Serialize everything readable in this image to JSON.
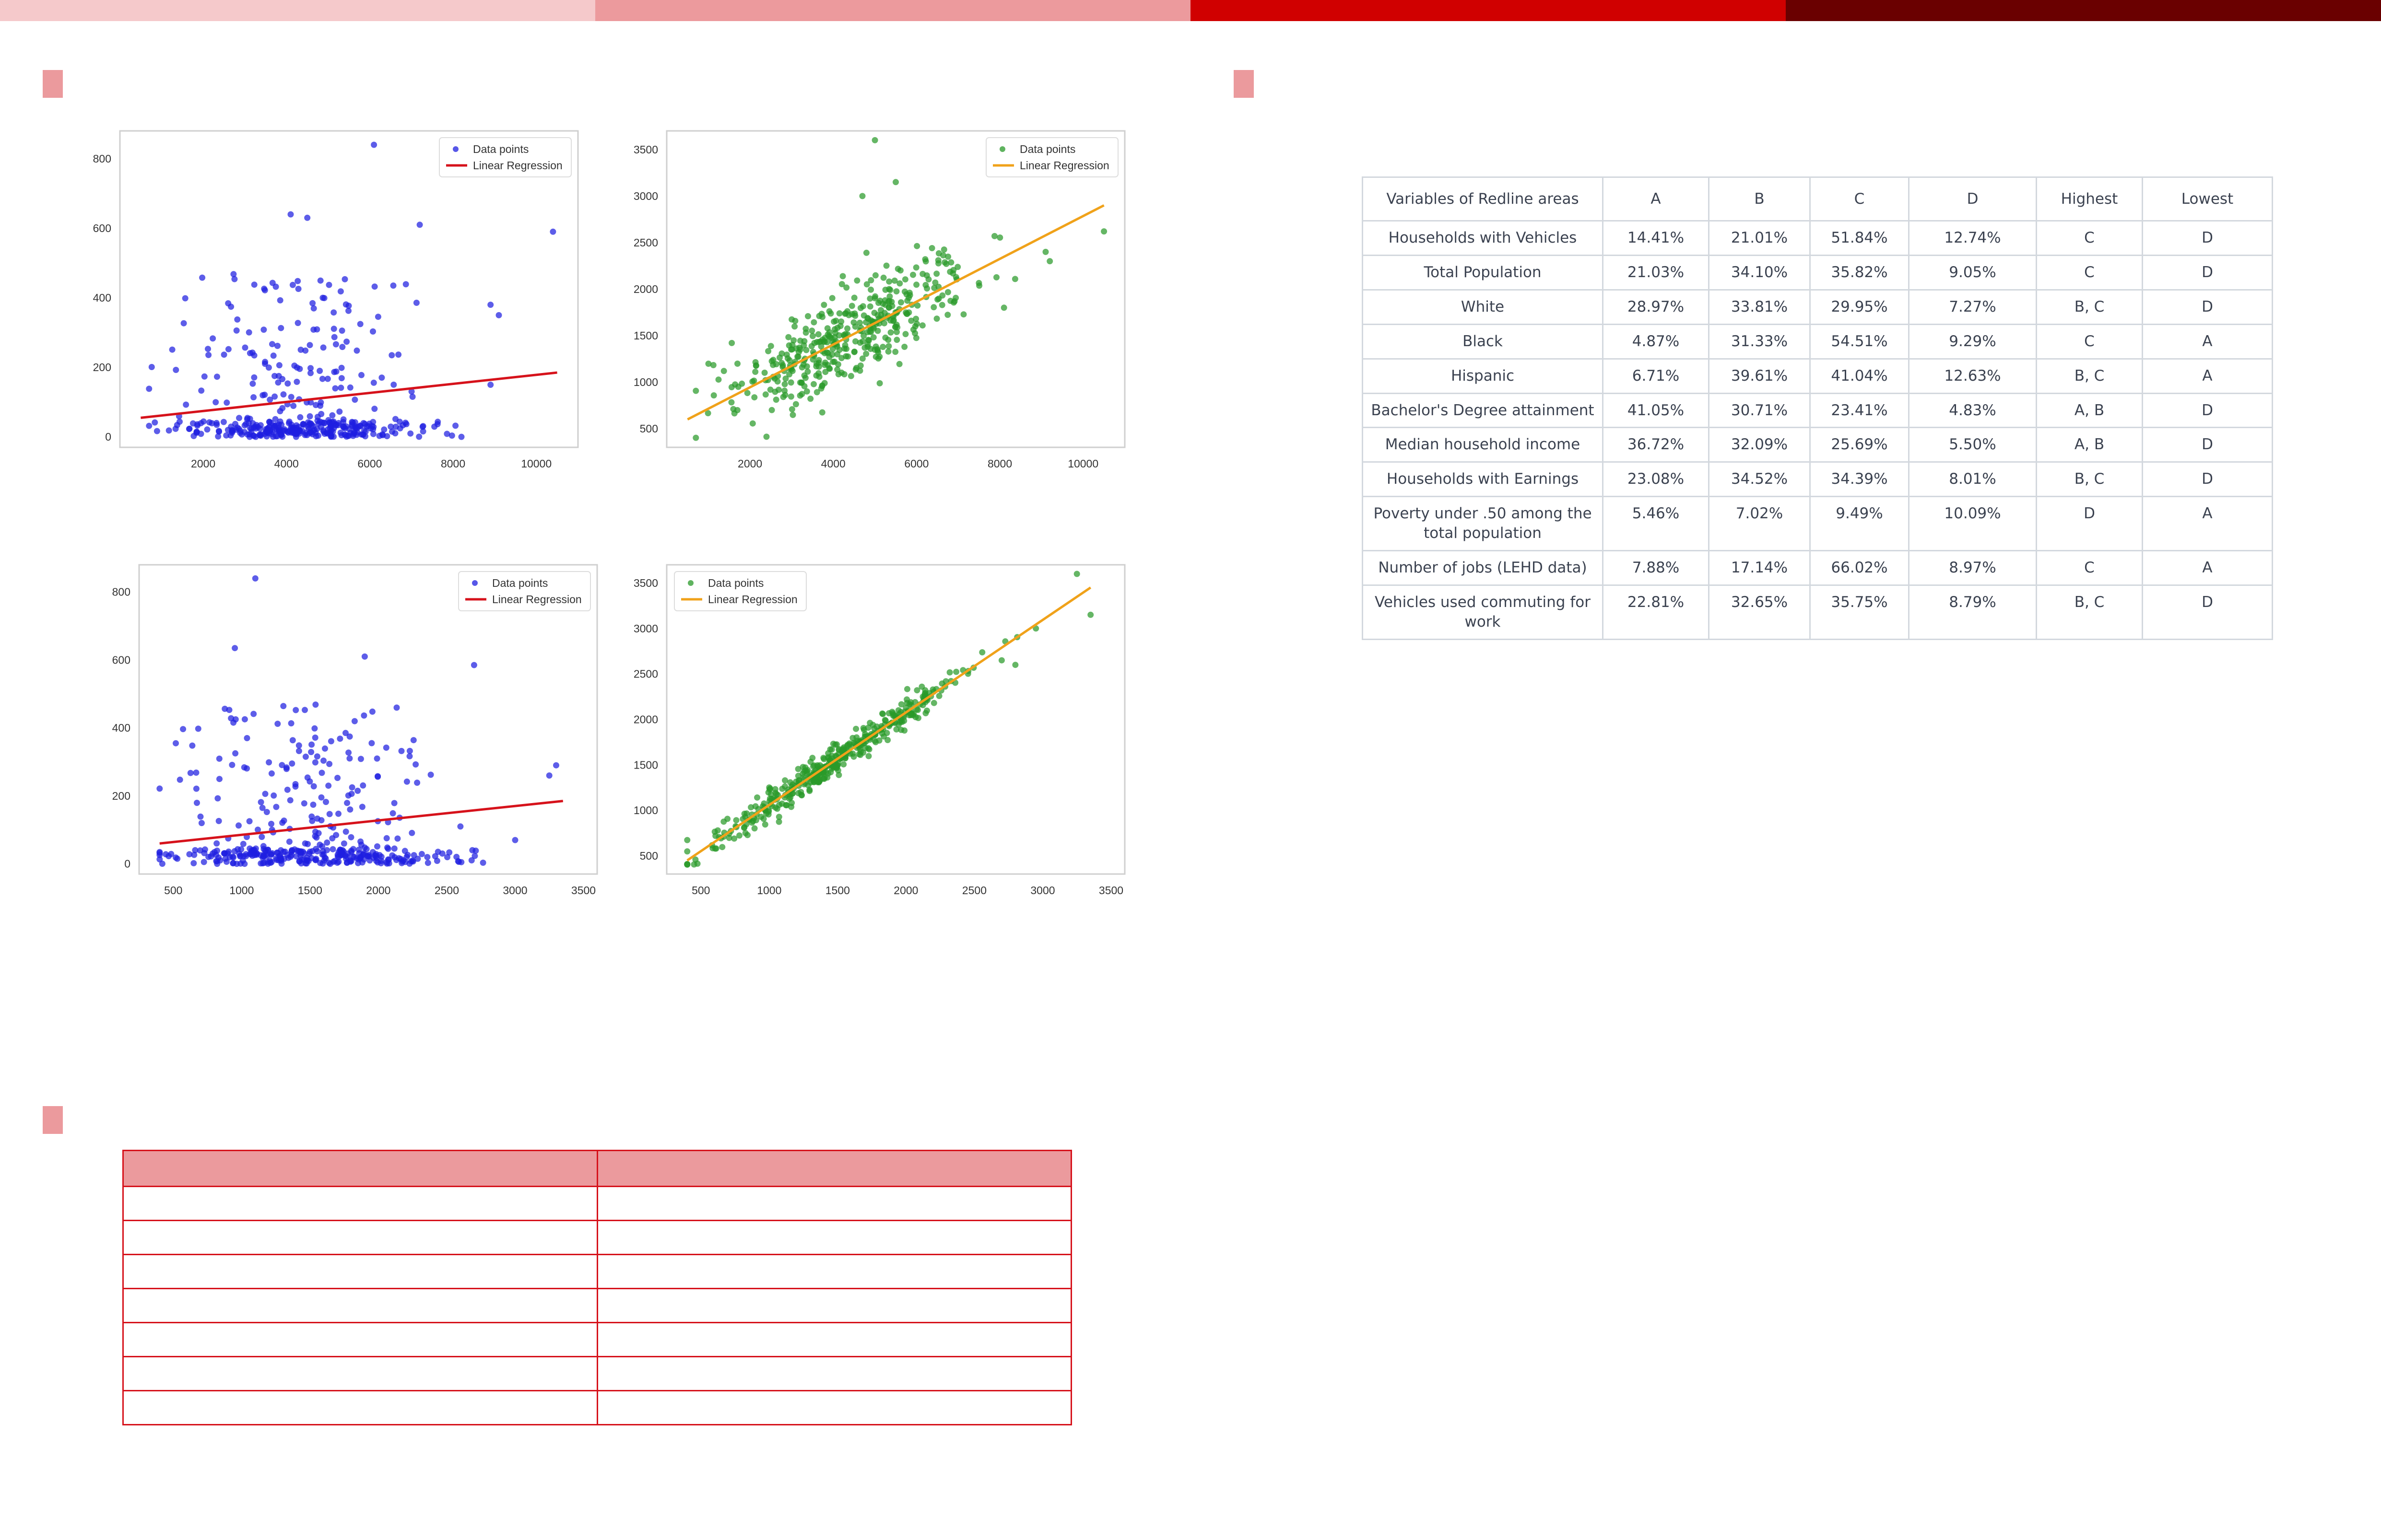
{
  "colors": {
    "top_bar": [
      "#f5c9cb",
      "#ec9a9d",
      "#d00000",
      "#6a0000"
    ],
    "section_marker": "#eb9a9d",
    "blue_points": "#1f1fe0",
    "green_points": "#2a9a2a",
    "red_line": "#d6121b",
    "orange_line": "#f0a21a"
  },
  "plots": [
    {
      "legend": {
        "points": "Data points",
        "line": "Linear Regression"
      },
      "xticks": [
        "2000",
        "4000",
        "6000",
        "8000",
        "10000"
      ],
      "yticks": [
        "0",
        "200",
        "400",
        "600",
        "800"
      ]
    },
    {
      "legend": {
        "points": "Data points",
        "line": "Linear Regression"
      },
      "xticks": [
        "2000",
        "4000",
        "6000",
        "8000",
        "10000"
      ],
      "yticks": [
        "500",
        "1000",
        "1500",
        "2000",
        "2500",
        "3000",
        "3500"
      ]
    },
    {
      "legend": {
        "points": "Data points",
        "line": "Linear Regression"
      },
      "xticks": [
        "500",
        "1000",
        "1500",
        "2000",
        "2500",
        "3000",
        "3500"
      ],
      "yticks": [
        "0",
        "200",
        "400",
        "600",
        "800"
      ]
    },
    {
      "legend": {
        "points": "Data points",
        "line": "Linear Regression"
      },
      "xticks": [
        "500",
        "1000",
        "1500",
        "2000",
        "2500",
        "3000",
        "3500"
      ],
      "yticks": [
        "500",
        "1000",
        "1500",
        "2000",
        "2500",
        "3000",
        "3500"
      ]
    }
  ],
  "chart_data": [
    {
      "type": "scatter",
      "xlim": [
        0,
        11000
      ],
      "ylim": [
        -30,
        880
      ],
      "grid": false,
      "legend_position": "top-right",
      "points": {
        "n": 420,
        "x_range": [
          700,
          10500
        ],
        "y_range": [
          0,
          840
        ],
        "color": "blue"
      },
      "outliers": [
        [
          6100,
          840
        ],
        [
          4100,
          640
        ],
        [
          4500,
          630
        ],
        [
          7200,
          610
        ],
        [
          10400,
          590
        ],
        [
          8900,
          380
        ],
        [
          9100,
          350
        ],
        [
          8900,
          150
        ]
      ],
      "regression": {
        "x": [
          500,
          10500
        ],
        "y": [
          55,
          185
        ],
        "color": "red"
      }
    },
    {
      "type": "scatter",
      "xlim": [
        0,
        11000
      ],
      "ylim": [
        300,
        3700
      ],
      "grid": false,
      "legend_position": "top-right",
      "points": {
        "n": 420,
        "x_range": [
          700,
          10500
        ],
        "y_range": [
          400,
          3600
        ],
        "color": "green"
      },
      "outliers": [
        [
          5000,
          3600
        ],
        [
          5500,
          3150
        ],
        [
          4700,
          3000
        ],
        [
          10500,
          2620
        ],
        [
          9100,
          2400
        ],
        [
          9200,
          2300
        ],
        [
          8100,
          1800
        ]
      ],
      "regression": {
        "x": [
          500,
          10500
        ],
        "y": [
          600,
          2900
        ],
        "color": "orange"
      }
    },
    {
      "type": "scatter",
      "xlim": [
        250,
        3600
      ],
      "ylim": [
        -30,
        880
      ],
      "grid": false,
      "legend_position": "top-right",
      "points": {
        "n": 420,
        "x_range": [
          400,
          3400
        ],
        "y_range": [
          0,
          840
        ],
        "color": "blue"
      },
      "outliers": [
        [
          1100,
          840
        ],
        [
          950,
          635
        ],
        [
          1900,
          610
        ],
        [
          2700,
          585
        ],
        [
          3300,
          290
        ],
        [
          3250,
          260
        ],
        [
          2600,
          110
        ],
        [
          3000,
          70
        ]
      ],
      "regression": {
        "x": [
          400,
          3350
        ],
        "y": [
          60,
          185
        ],
        "color": "red"
      }
    },
    {
      "type": "scatter",
      "xlim": [
        250,
        3600
      ],
      "ylim": [
        300,
        3700
      ],
      "grid": false,
      "legend_position": "top-left",
      "points": {
        "n": 420,
        "x_range": [
          400,
          3400
        ],
        "y_range": [
          400,
          3600
        ],
        "color": "green"
      },
      "outliers": [
        [
          3250,
          3600
        ],
        [
          3350,
          3150
        ],
        [
          2950,
          3000
        ],
        [
          2800,
          2600
        ],
        [
          2700,
          2650
        ]
      ],
      "regression": {
        "x": [
          400,
          3350
        ],
        "y": [
          450,
          3450
        ],
        "color": "orange"
      }
    }
  ],
  "variables_table": {
    "headers": [
      "Variables of Redline areas",
      "A",
      "B",
      "C",
      "D",
      "Highest",
      "Lowest"
    ],
    "rows": [
      [
        "Households with Vehicles",
        "14.41%",
        "21.01%",
        "51.84%",
        "12.74%",
        "C",
        "D"
      ],
      [
        "Total Population",
        "21.03%",
        "34.10%",
        "35.82%",
        "9.05%",
        "C",
        "D"
      ],
      [
        "White",
        "28.97%",
        "33.81%",
        "29.95%",
        "7.27%",
        "B, C",
        "D"
      ],
      [
        "Black",
        "4.87%",
        "31.33%",
        "54.51%",
        "9.29%",
        "C",
        "A"
      ],
      [
        "Hispanic",
        "6.71%",
        "39.61%",
        "41.04%",
        "12.63%",
        "B, C",
        "A"
      ],
      [
        "Bachelor's Degree attainment",
        "41.05%",
        "30.71%",
        "23.41%",
        "4.83%",
        "A, B",
        "D"
      ],
      [
        "Median household income",
        "36.72%",
        "32.09%",
        "25.69%",
        "5.50%",
        "A, B",
        "D"
      ],
      [
        "Households with Earnings",
        "23.08%",
        "34.52%",
        "34.39%",
        "8.01%",
        "B, C",
        "D"
      ],
      [
        "Poverty under .50 among the total population",
        "5.46%",
        "7.02%",
        "9.49%",
        "10.09%",
        "D",
        "A"
      ],
      [
        "Number of jobs (LEHD data)",
        "7.88%",
        "17.14%",
        "66.02%",
        "8.97%",
        "C",
        "A"
      ],
      [
        "Vehicles used commuting for work",
        "22.81%",
        "32.65%",
        "35.75%",
        "8.79%",
        "B, C",
        "D"
      ]
    ]
  }
}
